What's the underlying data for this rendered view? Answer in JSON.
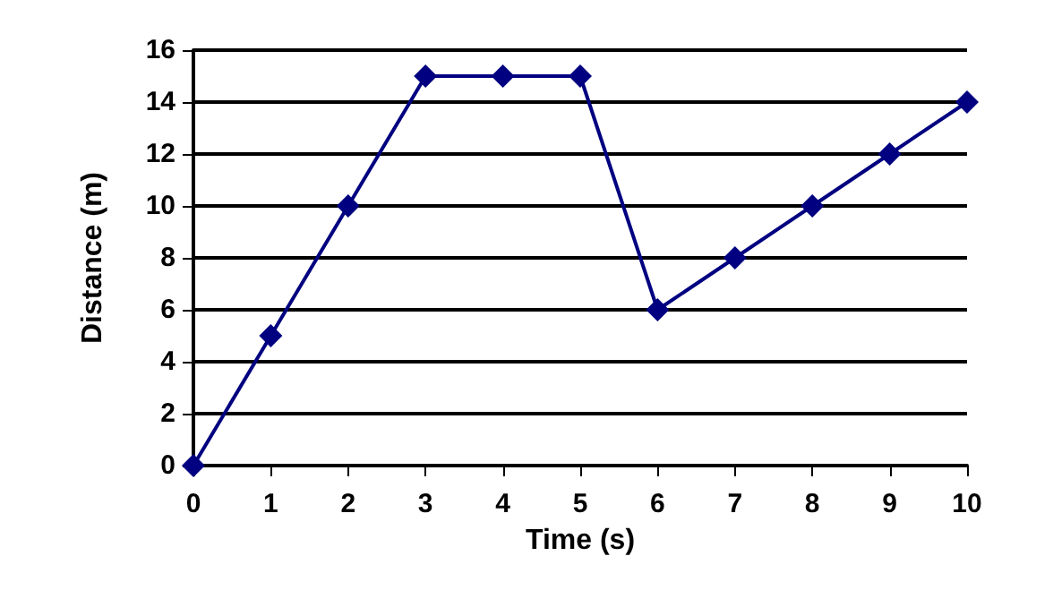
{
  "chart_data": {
    "type": "line",
    "xlabel": "Time (s)",
    "ylabel": "Distance (m)",
    "x": [
      0,
      1,
      2,
      3,
      4,
      5,
      6,
      7,
      8,
      9,
      10
    ],
    "series": [
      {
        "color": "#000080",
        "values": [
          0,
          5,
          10,
          15,
          15,
          15,
          6,
          8,
          10,
          12,
          14
        ]
      }
    ],
    "xlim": [
      0,
      10
    ],
    "xticks": [
      0,
      1,
      2,
      3,
      4,
      5,
      6,
      7,
      8,
      9,
      10
    ],
    "ylim": [
      0,
      16
    ],
    "yticks": [
      0,
      2,
      4,
      6,
      8,
      10,
      12,
      14,
      16
    ],
    "grid": "y",
    "marker": "diamond",
    "line_style": "solid"
  }
}
